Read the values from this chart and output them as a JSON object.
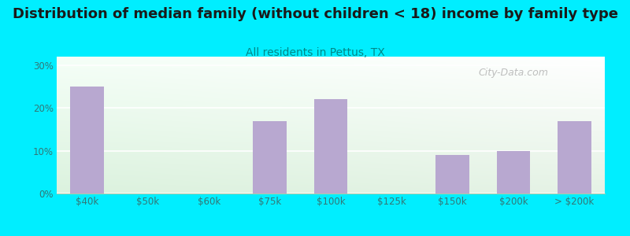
{
  "title": "Distribution of median family (without children < 18) income by family type",
  "subtitle": "All residents in Pettus, TX",
  "categories": [
    "$40k",
    "$50k",
    "$60k",
    "$75k",
    "$100k",
    "$125k",
    "$150k",
    "$200k",
    "> $200k"
  ],
  "values": [
    25.0,
    0.0,
    0.0,
    17.0,
    22.0,
    0.0,
    9.0,
    10.0,
    17.0
  ],
  "bar_color": "#b8a8d0",
  "background_color": "#00eeff",
  "plot_bg_topleft": "#e8f5e0",
  "plot_bg_topright": "#f0faf8",
  "plot_bg_bottom": "#e0f0e8",
  "title_color": "#1a1a1a",
  "subtitle_color": "#008888",
  "tick_color": "#337777",
  "ylim": [
    0,
    32
  ],
  "yticks": [
    0,
    10,
    20,
    30
  ],
  "ytick_labels": [
    "0%",
    "10%",
    "20%",
    "30%"
  ],
  "title_fontsize": 13,
  "subtitle_fontsize": 10,
  "watermark": "City-Data.com"
}
